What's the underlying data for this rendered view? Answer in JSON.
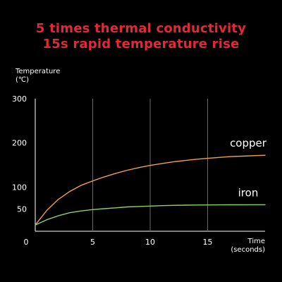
{
  "headline": {
    "line1": "5 times thermal conductivity",
    "line2": "15s rapid temperature rise"
  },
  "colors": {
    "background": "#000000",
    "headline": "#e02b36",
    "copper": "#f0a050",
    "iron": "#8fcf6a",
    "grid": "#6a6a6a",
    "text": "#ffffff"
  },
  "chart_data": {
    "type": "line",
    "title": "",
    "ylabel_lines": [
      "Temperature",
      "(℃)"
    ],
    "xlabel_lines": [
      "Time",
      "(seconds)"
    ],
    "xlim": [
      0,
      20
    ],
    "ylim": [
      0,
      300
    ],
    "x_ticks": [
      "0",
      "5",
      "10",
      "15"
    ],
    "y_ticks": [
      "50",
      "100",
      "200",
      "300"
    ],
    "grid": "vertical lines at 5, 10, 15",
    "series": [
      {
        "name": "copper",
        "color": "#f0a050",
        "x": [
          0,
          1,
          2,
          3,
          4,
          5,
          6,
          7,
          8,
          9,
          10,
          11,
          12,
          13,
          14,
          15,
          16,
          17,
          18,
          19,
          20
        ],
        "y": [
          14,
          47,
          72,
          90,
          104,
          114,
          123,
          131,
          138,
          144,
          149,
          153,
          157,
          160,
          163,
          165,
          167,
          169,
          170,
          171,
          172
        ]
      },
      {
        "name": "iron",
        "color": "#8fcf6a",
        "x": [
          0,
          1,
          2,
          3,
          4,
          5,
          6,
          7,
          8,
          9,
          10,
          11,
          12,
          13,
          14,
          15,
          16,
          17,
          18,
          19,
          20
        ],
        "y": [
          14,
          26,
          35,
          42,
          46,
          49,
          51,
          53,
          55,
          56,
          57,
          58,
          58.5,
          59,
          59.3,
          59.5,
          59.7,
          59.8,
          59.9,
          60,
          60
        ]
      }
    ]
  }
}
